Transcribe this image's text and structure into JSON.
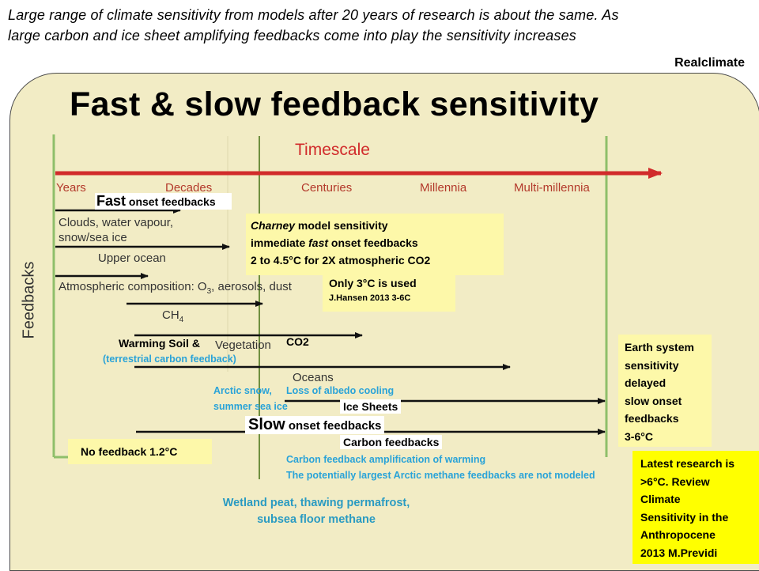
{
  "header": {
    "caption_line1": "Large range of climate sensitivity from models after 20 years of research is about the same. As",
    "caption_line2": "large carbon and ice sheet  amplifying feedbacks come into play the sensitivity increases",
    "source": "Realclimate"
  },
  "diagram": {
    "title": "Fast & slow feedback sensitivity",
    "timescale_label": "Timescale",
    "axis_y_label": "Feedbacks",
    "timescale_ticks": [
      "Years",
      "Decades",
      "Centuries",
      "Millennia",
      "Multi-millennia"
    ],
    "fast_label": {
      "big": "Fast",
      "small": " onset feedbacks"
    },
    "slow_label": {
      "big": "Slow",
      "small": " onset feedbacks"
    },
    "feedback_items": {
      "clouds": "Clouds, water vapour,",
      "snow_ice": "snow/sea ice",
      "upper_ocean": "Upper ocean",
      "atmos_composition": "Atmospheric composition: O",
      "atmos_composition_tail": ", aerosols, dust",
      "ch4": "CH",
      "vegetation": "Vegetation",
      "oceans": "Oceans"
    },
    "annotations": {
      "warming_soil": "Warming Soil &",
      "co2": "CO2",
      "terrestrial": "(terrestrial carbon feedback)",
      "arctic_snow_1": "Arctic snow,",
      "arctic_snow_2": "summer sea ice",
      "albedo": "Loss of albedo cooling",
      "ice_sheets": "Ice Sheets",
      "carbon_feedbacks": "Carbon feedbacks",
      "no_feedback": "No feedback  1.2°C",
      "carbon_amp": "Carbon feedback amplification of warming",
      "methane_note": "The potentially largest Arctic methane feedbacks  are not modeled",
      "wetland_1": "Wetland peat, thawing permafrost,",
      "wetland_2": "subsea floor methane"
    },
    "charney_box": {
      "line1_em": "Charney",
      "line1_rest": "  model sensitivity",
      "line2_pre": "immediate  ",
      "line2_em": "fast",
      "line2_post": " onset feedbacks",
      "line3": "2 to  4.5°C  for 2X atmospheric CO2"
    },
    "hansen_box": {
      "line1": "Only 3°C is used",
      "line2": "J.Hansen 2013 3-6C"
    },
    "earth_system_box": [
      "Earth system",
      "sensitivity",
      "delayed",
      "slow onset",
      "feedbacks",
      "3-6°C"
    ],
    "latest_box": [
      "Latest research is",
      ">6°C. Review",
      "Climate",
      "Sensitivity in the",
      "Anthropocene",
      "2013 M.Previdi"
    ]
  }
}
